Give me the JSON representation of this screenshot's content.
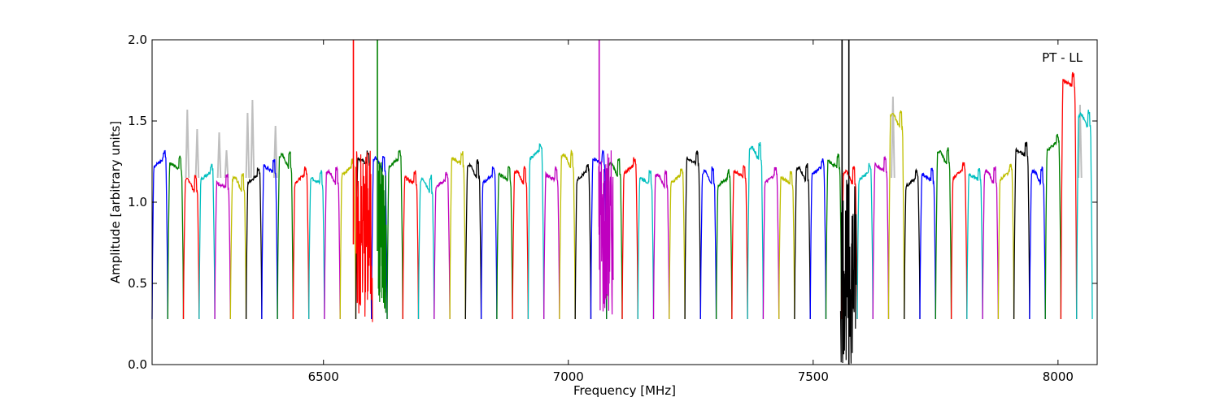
{
  "chart_data": {
    "type": "line",
    "title": "",
    "xlabel": "Frequency [MHz]",
    "ylabel": "Amplitude [arbitrary units]",
    "xlim": [
      6150,
      8080
    ],
    "ylim": [
      0.0,
      2.0
    ],
    "x_ticks": [
      6500,
      7000,
      7500,
      8000
    ],
    "x_tick_labels": [
      "6500",
      "7000",
      "7500",
      "8000"
    ],
    "y_ticks": [
      0.0,
      0.5,
      1.0,
      1.5,
      2.0
    ],
    "y_tick_labels": [
      "0.0",
      "0.5",
      "1.0",
      "1.5",
      "2.0"
    ],
    "grid": false,
    "annotation": "PT - LL",
    "background_series_color": "#bfbfbf",
    "color_cycle": [
      "#0000ff",
      "#008000",
      "#ff0000",
      "#00bfbf",
      "#bf00bf",
      "#bfbf00",
      "#000000"
    ],
    "band_width_mhz": 32,
    "band_starts_mhz": [
      6150,
      6182,
      6214,
      6246,
      6278,
      6310,
      6342,
      6374,
      6406,
      6438,
      6470,
      6502,
      6534,
      6566,
      6598,
      6630,
      6662,
      6694,
      6726,
      6758,
      6790,
      6822,
      6854,
      6886,
      6918,
      6950,
      6982,
      7014,
      7046,
      7078,
      7110,
      7142,
      7174,
      7206,
      7238,
      7270,
      7302,
      7334,
      7366,
      7398,
      7430,
      7462,
      7494,
      7526,
      7558,
      7590,
      7622,
      7654,
      7686,
      7718,
      7750,
      7782,
      7814,
      7846,
      7878,
      7910,
      7942,
      7974,
      8006,
      8038
    ],
    "band_levels": [
      1.3,
      1.27,
      1.15,
      1.22,
      1.15,
      1.16,
      1.2,
      1.25,
      1.3,
      1.2,
      1.18,
      1.2,
      1.25,
      1.3,
      1.28,
      1.3,
      1.18,
      1.15,
      1.17,
      1.3,
      1.24,
      1.2,
      1.2,
      1.2,
      1.35,
      1.2,
      1.3,
      1.22,
      1.3,
      1.25,
      1.26,
      1.18,
      1.18,
      1.2,
      1.3,
      1.2,
      1.18,
      1.22,
      1.35,
      1.2,
      1.18,
      1.22,
      1.25,
      1.28,
      1.2,
      1.22,
      1.26,
      1.55,
      1.18,
      1.2,
      1.32,
      1.23,
      1.2,
      1.2,
      1.22,
      1.35,
      1.2,
      1.4,
      1.78,
      1.55
    ],
    "band_min": 0.28,
    "background_peaks": [
      {
        "x": 6222,
        "y": 1.57
      },
      {
        "x": 6242,
        "y": 1.45
      },
      {
        "x": 6287,
        "y": 1.43
      },
      {
        "x": 6302,
        "y": 1.32
      },
      {
        "x": 6345,
        "y": 1.55
      },
      {
        "x": 6355,
        "y": 1.63
      },
      {
        "x": 6402,
        "y": 1.47
      },
      {
        "x": 7663,
        "y": 1.65
      },
      {
        "x": 8045,
        "y": 1.6
      }
    ],
    "spikes": [
      {
        "x": 6561,
        "color": "#ff0000",
        "y0": 0.74,
        "y1": 2.0
      },
      {
        "x": 6610,
        "color": "#008000",
        "y0": 0.7,
        "y1": 2.0
      },
      {
        "x": 7063,
        "color": "#bf00bf",
        "y0": 0.8,
        "y1": 2.0
      },
      {
        "x": 7559,
        "color": "#000000",
        "y0": 0.6,
        "y1": 2.0
      },
      {
        "x": 7573,
        "color": "#000000",
        "y0": 0.0,
        "y1": 2.0
      }
    ],
    "noisy_regions": [
      {
        "x0": 6566,
        "x1": 6600,
        "color": "#ff0000",
        "lo": 0.24,
        "hi": 1.34
      },
      {
        "x0": 6612,
        "x1": 6628,
        "color": "#008000",
        "lo": 0.3,
        "hi": 1.3
      },
      {
        "x0": 7062,
        "x1": 7092,
        "color": "#bf00bf",
        "lo": 0.25,
        "hi": 1.33
      },
      {
        "x0": 7556,
        "x1": 7588,
        "color": "#000000",
        "lo": 0.0,
        "hi": 1.15
      }
    ]
  }
}
